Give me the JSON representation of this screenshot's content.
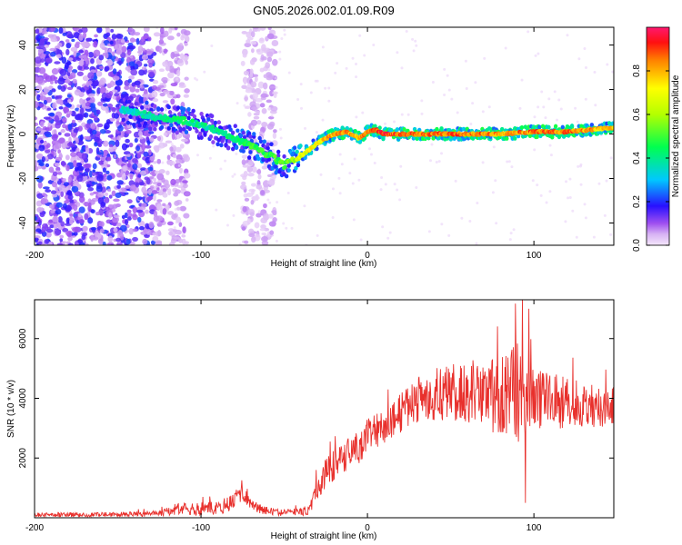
{
  "title": "GN05.2026.002.01.09.R09",
  "colors": {
    "snr_line": "#e8302c",
    "axis": "#000000"
  },
  "chart_data": [
    {
      "type": "heatmap",
      "xlabel": "Height of straight line (km)",
      "ylabel": "Frequency (Hz)",
      "xlim": [
        -200,
        148
      ],
      "ylim": [
        -50,
        48
      ],
      "xticks": [
        "-200",
        "-100",
        "0",
        "100"
      ],
      "xtick_values": [
        -200,
        -100,
        0,
        100
      ],
      "yticks": [
        "-40",
        "-20",
        "0",
        "20",
        "40"
      ],
      "ytick_values": [
        -40,
        -20,
        0,
        20,
        40
      ],
      "colorbar": {
        "label": "Normalized spectral amplitude",
        "range": [
          0,
          1
        ],
        "ticks": [
          "0.0",
          "0.2",
          "0.4",
          "0.6",
          "0.8"
        ],
        "tick_values": [
          0.0,
          0.2,
          0.4,
          0.6,
          0.8
        ]
      },
      "ridge": {
        "x": [
          -148,
          -130,
          -110,
          -95,
          -80,
          -68,
          -58,
          -50,
          -45,
          -40,
          -30,
          -20,
          -12,
          -5,
          0,
          5,
          10,
          20,
          40,
          60,
          80,
          100,
          120,
          135,
          148
        ],
        "frequency": [
          11,
          8,
          6,
          3,
          -2,
          -6,
          -10,
          -14,
          -12,
          -10,
          -4,
          0,
          1,
          -2,
          1,
          2,
          0,
          0,
          0,
          0,
          0,
          1,
          1,
          2,
          3
        ],
        "amplitude": [
          0.35,
          0.4,
          0.45,
          0.4,
          0.45,
          0.5,
          0.5,
          0.55,
          0.6,
          0.7,
          0.8,
          0.85,
          0.85,
          0.8,
          0.9,
          0.9,
          0.95,
          0.9,
          0.9,
          0.9,
          0.85,
          0.9,
          0.9,
          0.85,
          0.8
        ]
      },
      "noise_regions": [
        {
          "x_range": [
            -200,
            -128
          ],
          "freq_range": [
            -50,
            48
          ],
          "amplitude_range": [
            0.05,
            0.22
          ]
        },
        {
          "x_range": [
            -128,
            -108
          ],
          "freq_range": [
            -50,
            48
          ],
          "amplitude_range": [
            0.03,
            0.1
          ]
        },
        {
          "x_range": [
            -75,
            -55
          ],
          "freq_range": [
            -50,
            48
          ],
          "amplitude_range": [
            0.02,
            0.08
          ]
        }
      ]
    },
    {
      "type": "line",
      "xlabel": "Height of straight line (km)",
      "ylabel": "SNR (10 * v/v)",
      "xlim": [
        -200,
        148
      ],
      "ylim": [
        0,
        7300
      ],
      "xticks": [
        "-200",
        "-100",
        "0",
        "100"
      ],
      "xtick_values": [
        -200,
        -100,
        0,
        100
      ],
      "yticks": [
        "2000",
        "4000",
        "6000"
      ],
      "ytick_values": [
        2000,
        4000,
        6000
      ],
      "envelope": {
        "x": [
          -200,
          -150,
          -125,
          -115,
          -100,
          -90,
          -82,
          -75,
          -72,
          -68,
          -62,
          -55,
          -45,
          -35,
          -30,
          -25,
          -15,
          -5,
          0,
          10,
          20,
          25,
          30,
          40,
          50,
          60,
          70,
          80,
          90,
          100,
          110,
          120,
          130,
          140,
          148
        ],
        "mean": [
          100,
          110,
          140,
          280,
          300,
          330,
          500,
          900,
          700,
          400,
          250,
          180,
          180,
          230,
          1000,
          1500,
          2000,
          2400,
          2700,
          3100,
          3500,
          3800,
          3900,
          4100,
          4300,
          4200,
          4100,
          4100,
          4200,
          3900,
          4000,
          3800,
          3800,
          3700,
          3700
        ],
        "amplitude": [
          80,
          80,
          100,
          200,
          220,
          220,
          300,
          400,
          300,
          200,
          150,
          120,
          120,
          150,
          450,
          500,
          550,
          600,
          600,
          600,
          650,
          700,
          800,
          900,
          1000,
          1100,
          1200,
          1300,
          1700,
          1000,
          1000,
          900,
          800,
          700,
          700
        ]
      },
      "spikes": [
        {
          "x": 93,
          "y": 7300
        },
        {
          "x": 97,
          "y": 7000
        },
        {
          "x": 95,
          "y": 500
        }
      ]
    }
  ]
}
